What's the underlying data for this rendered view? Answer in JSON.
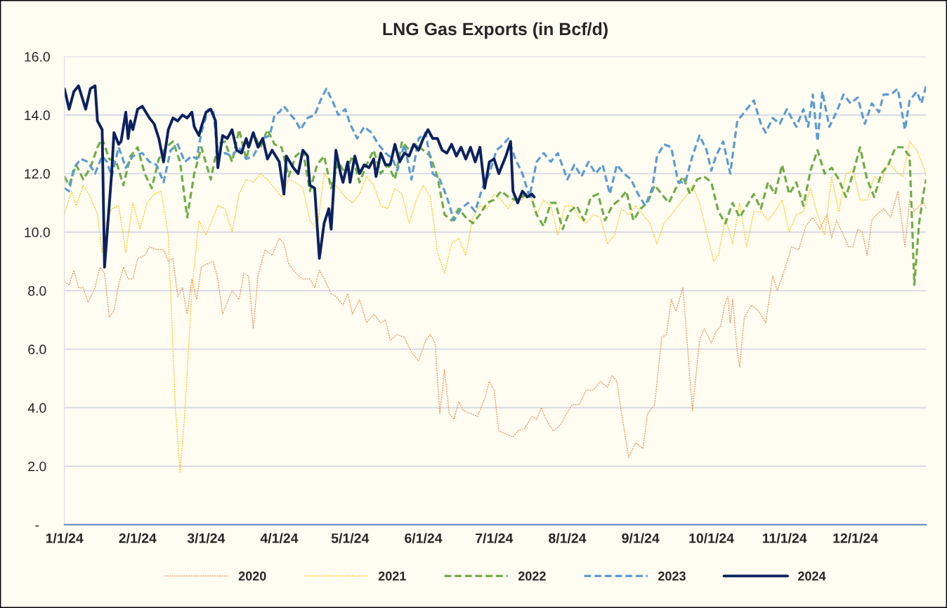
{
  "chart_data": {
    "type": "line",
    "title": "LNG Gas Exports (in Bcf/d)",
    "xlim": [
      "2024-01-01",
      "2024-12-31"
    ],
    "xticks": [
      {
        "value": "2024-01-01",
        "label": "1/1/24"
      },
      {
        "value": "2024-02-01",
        "label": "2/1/24"
      },
      {
        "value": "2024-03-01",
        "label": "3/1/24"
      },
      {
        "value": "2024-04-01",
        "label": "4/1/24"
      },
      {
        "value": "2024-05-01",
        "label": "5/1/24"
      },
      {
        "value": "2024-06-01",
        "label": "6/1/24"
      },
      {
        "value": "2024-07-01",
        "label": "7/1/24"
      },
      {
        "value": "2024-08-01",
        "label": "8/1/24"
      },
      {
        "value": "2024-09-01",
        "label": "9/1/24"
      },
      {
        "value": "2024-10-01",
        "label": "10/1/24"
      },
      {
        "value": "2024-11-01",
        "label": "11/1/24"
      },
      {
        "value": "2024-12-01",
        "label": "12/1/24"
      }
    ],
    "ylim": [
      0,
      16
    ],
    "yticks": [
      {
        "value": 0,
        "label": "-"
      },
      {
        "value": 2,
        "label": "2.0"
      },
      {
        "value": 4,
        "label": "4.0"
      },
      {
        "value": 6,
        "label": "6.0"
      },
      {
        "value": 8,
        "label": "8.0"
      },
      {
        "value": 10,
        "label": "10.0"
      },
      {
        "value": 12,
        "label": "12.0"
      },
      {
        "value": 14,
        "label": "14.0"
      },
      {
        "value": 16,
        "label": "16.0"
      }
    ],
    "grid": "y",
    "legend": "bottom",
    "marker": "none",
    "series": [
      {
        "name": "2020",
        "color": "#e8894a",
        "line_style": "dotted",
        "x": [
          "2024-01-01",
          "2024-01-03",
          "2024-01-05",
          "2024-01-07",
          "2024-01-09",
          "2024-01-11",
          "2024-01-14",
          "2024-01-16",
          "2024-01-18",
          "2024-01-20",
          "2024-01-22",
          "2024-01-24",
          "2024-01-26",
          "2024-01-28",
          "2024-01-30",
          "2024-02-01",
          "2024-02-04",
          "2024-02-06",
          "2024-02-09",
          "2024-02-12",
          "2024-02-14",
          "2024-02-16",
          "2024-02-18",
          "2024-02-20",
          "2024-02-22",
          "2024-02-24",
          "2024-02-26",
          "2024-02-28",
          "2024-03-01",
          "2024-03-04",
          "2024-03-06",
          "2024-03-08",
          "2024-03-10",
          "2024-03-12",
          "2024-03-15",
          "2024-03-17",
          "2024-03-19",
          "2024-03-21",
          "2024-03-23",
          "2024-03-26",
          "2024-03-29",
          "2024-04-01",
          "2024-04-03",
          "2024-04-05",
          "2024-04-08",
          "2024-04-11",
          "2024-04-14",
          "2024-04-16",
          "2024-04-18",
          "2024-04-20",
          "2024-04-23",
          "2024-04-25",
          "2024-04-28",
          "2024-04-30",
          "2024-05-02",
          "2024-05-05",
          "2024-05-08",
          "2024-05-11",
          "2024-05-14",
          "2024-05-16",
          "2024-05-18",
          "2024-05-21",
          "2024-05-24",
          "2024-05-27",
          "2024-05-30",
          "2024-06-02",
          "2024-06-04",
          "2024-06-06",
          "2024-06-08",
          "2024-06-10",
          "2024-06-12",
          "2024-06-14",
          "2024-06-16",
          "2024-06-18",
          "2024-06-21",
          "2024-06-24",
          "2024-06-27",
          "2024-06-29",
          "2024-07-01",
          "2024-07-03",
          "2024-07-06",
          "2024-07-09",
          "2024-07-11",
          "2024-07-14",
          "2024-07-17",
          "2024-07-19",
          "2024-07-21",
          "2024-07-23",
          "2024-07-26",
          "2024-07-29",
          "2024-07-31",
          "2024-08-03",
          "2024-08-06",
          "2024-08-09",
          "2024-08-12",
          "2024-08-15",
          "2024-08-18",
          "2024-08-20",
          "2024-08-22",
          "2024-08-24",
          "2024-08-27",
          "2024-08-30",
          "2024-09-02",
          "2024-09-04",
          "2024-09-07",
          "2024-09-10",
          "2024-09-12",
          "2024-09-14",
          "2024-09-16",
          "2024-09-19",
          "2024-09-21",
          "2024-09-23",
          "2024-09-26",
          "2024-09-28",
          "2024-10-01",
          "2024-10-03",
          "2024-10-05",
          "2024-10-07",
          "2024-10-08",
          "2024-10-09",
          "2024-10-10",
          "2024-10-12",
          "2024-10-13",
          "2024-10-15",
          "2024-10-18",
          "2024-10-21",
          "2024-10-24",
          "2024-10-27",
          "2024-10-29",
          "2024-11-01",
          "2024-11-04",
          "2024-11-07",
          "2024-11-10",
          "2024-11-13",
          "2024-11-16",
          "2024-11-19",
          "2024-11-21",
          "2024-11-23",
          "2024-11-26",
          "2024-11-28",
          "2024-11-30",
          "2024-12-02",
          "2024-12-04",
          "2024-12-06",
          "2024-12-08",
          "2024-12-10",
          "2024-12-13",
          "2024-12-16",
          "2024-12-19",
          "2024-12-22",
          "2024-12-24",
          "2024-12-26",
          "2024-12-28",
          "2024-12-30",
          "2024-12-31"
        ],
        "values": [
          8.3,
          8.2,
          8.7,
          8.1,
          8.1,
          7.6,
          8.1,
          8.8,
          8.6,
          7.1,
          7.3,
          8.2,
          8.8,
          8.4,
          8.4,
          9.1,
          9.2,
          9.5,
          9.4,
          9.4,
          9.0,
          9.1,
          7.8,
          8.1,
          7.2,
          8.4,
          7.7,
          8.8,
          8.9,
          9.0,
          8.4,
          7.2,
          7.6,
          8.0,
          7.7,
          8.6,
          8.5,
          6.7,
          8.5,
          9.4,
          9.2,
          9.8,
          9.6,
          8.9,
          8.6,
          8.4,
          8.4,
          8.1,
          8.7,
          8.4,
          7.9,
          7.8,
          7.5,
          7.9,
          7.2,
          7.7,
          6.9,
          7.2,
          6.9,
          7.0,
          6.3,
          6.5,
          6.4,
          5.9,
          5.6,
          6.3,
          6.5,
          6.2,
          3.8,
          5.3,
          3.8,
          3.6,
          4.2,
          3.9,
          3.8,
          3.7,
          4.3,
          4.9,
          4.6,
          3.2,
          3.1,
          3.0,
          3.2,
          3.3,
          3.7,
          3.6,
          4.0,
          3.6,
          3.2,
          3.4,
          3.7,
          4.1,
          4.1,
          4.6,
          4.6,
          4.9,
          4.7,
          5.1,
          4.9,
          3.8,
          2.3,
          2.8,
          2.6,
          3.8,
          4.1,
          6.4,
          6.5,
          7.7,
          7.3,
          8.1,
          6.0,
          3.9,
          6.3,
          6.7,
          6.2,
          6.6,
          6.8,
          7.6,
          7.8,
          6.9,
          7.7,
          5.9,
          5.4,
          7.1,
          7.5,
          7.3,
          6.9,
          8.5,
          8.0,
          8.7,
          9.5,
          9.4,
          10.2,
          10.5,
          10.1,
          10.6,
          9.8,
          10.4,
          9.9,
          9.5,
          9.5,
          10.1,
          10.0,
          9.2,
          10.4,
          10.6,
          10.8,
          10.5,
          11.4,
          9.5,
          11.1,
          10.7,
          10.9,
          11.0,
          10.8
        ]
      },
      {
        "name": "2021",
        "color": "#ffc000",
        "line_style": "dotted",
        "x": [
          "2024-01-01",
          "2024-01-04",
          "2024-01-06",
          "2024-01-09",
          "2024-01-12",
          "2024-01-15",
          "2024-01-17",
          "2024-01-19",
          "2024-01-21",
          "2024-01-24",
          "2024-01-27",
          "2024-01-30",
          "2024-02-02",
          "2024-02-05",
          "2024-02-08",
          "2024-02-11",
          "2024-02-14",
          "2024-02-17",
          "2024-02-19",
          "2024-02-21",
          "2024-02-24",
          "2024-02-27",
          "2024-03-01",
          "2024-03-03",
          "2024-03-06",
          "2024-03-09",
          "2024-03-12",
          "2024-03-15",
          "2024-03-18",
          "2024-03-21",
          "2024-03-24",
          "2024-03-27",
          "2024-03-30",
          "2024-04-02",
          "2024-04-05",
          "2024-04-08",
          "2024-04-11",
          "2024-04-14",
          "2024-04-17",
          "2024-04-20",
          "2024-04-23",
          "2024-04-26",
          "2024-04-29",
          "2024-05-02",
          "2024-05-05",
          "2024-05-08",
          "2024-05-11",
          "2024-05-14",
          "2024-05-17",
          "2024-05-20",
          "2024-05-23",
          "2024-05-26",
          "2024-05-29",
          "2024-06-01",
          "2024-06-04",
          "2024-06-07",
          "2024-06-10",
          "2024-06-13",
          "2024-06-16",
          "2024-06-19",
          "2024-06-22",
          "2024-06-25",
          "2024-06-28",
          "2024-07-01",
          "2024-07-04",
          "2024-07-07",
          "2024-07-10",
          "2024-07-13",
          "2024-07-16",
          "2024-07-19",
          "2024-07-22",
          "2024-07-25",
          "2024-07-28",
          "2024-07-31",
          "2024-08-03",
          "2024-08-06",
          "2024-08-09",
          "2024-08-12",
          "2024-08-15",
          "2024-08-18",
          "2024-08-21",
          "2024-08-24",
          "2024-08-27",
          "2024-08-30",
          "2024-09-02",
          "2024-09-05",
          "2024-09-08",
          "2024-09-11",
          "2024-09-14",
          "2024-09-17",
          "2024-09-20",
          "2024-09-23",
          "2024-09-26",
          "2024-09-29",
          "2024-10-02",
          "2024-10-04",
          "2024-10-07",
          "2024-10-10",
          "2024-10-13",
          "2024-10-16",
          "2024-10-19",
          "2024-10-22",
          "2024-10-25",
          "2024-10-28",
          "2024-10-31",
          "2024-11-03",
          "2024-11-06",
          "2024-11-09",
          "2024-11-12",
          "2024-11-15",
          "2024-11-18",
          "2024-11-21",
          "2024-11-24",
          "2024-11-27",
          "2024-11-30",
          "2024-12-03",
          "2024-12-06",
          "2024-12-09",
          "2024-12-12",
          "2024-12-15",
          "2024-12-18",
          "2024-12-21",
          "2024-12-24",
          "2024-12-27",
          "2024-12-30",
          "2024-12-31"
        ],
        "values": [
          10.6,
          11.4,
          10.9,
          11.6,
          11.2,
          10.6,
          9.3,
          10.4,
          10.8,
          10.9,
          9.3,
          11.0,
          10.1,
          11.0,
          11.3,
          11.4,
          9.9,
          4.0,
          1.8,
          3.8,
          8.0,
          10.4,
          9.9,
          10.3,
          10.9,
          10.8,
          10.0,
          11.3,
          11.8,
          11.7,
          12.0,
          11.8,
          11.5,
          11.2,
          11.8,
          11.7,
          11.5,
          10.4,
          10.1,
          12.0,
          11.7,
          11.5,
          11.2,
          11.0,
          11.3,
          11.9,
          11.6,
          10.9,
          10.8,
          11.5,
          11.3,
          10.3,
          11.1,
          11.6,
          11.2,
          9.3,
          8.6,
          9.6,
          9.8,
          9.2,
          10.5,
          10.9,
          10.8,
          11.3,
          11.1,
          10.8,
          11.2,
          11.1,
          11.4,
          10.6,
          11.1,
          10.9,
          9.9,
          10.9,
          10.9,
          10.5,
          10.3,
          10.6,
          10.5,
          9.6,
          9.9,
          10.8,
          10.6,
          10.9,
          10.6,
          10.3,
          9.6,
          10.3,
          10.6,
          10.9,
          11.2,
          11.6,
          11.0,
          10.0,
          9.0,
          9.2,
          10.5,
          9.6,
          11.0,
          9.5,
          10.7,
          10.7,
          10.4,
          10.7,
          11.1,
          10.0,
          10.6,
          10.7,
          11.5,
          10.6,
          9.9,
          11.9,
          10.7,
          12.0,
          12.1,
          11.1,
          11.1,
          11.9,
          11.7,
          12.4,
          12.1,
          11.9,
          13.1,
          12.8,
          12.2,
          11.9
        ]
      },
      {
        "name": "2022",
        "color": "#70ad47",
        "line_style": "dashed",
        "x": [
          "2024-01-01",
          "2024-01-03",
          "2024-01-06",
          "2024-01-09",
          "2024-01-12",
          "2024-01-15",
          "2024-01-17",
          "2024-01-20",
          "2024-01-23",
          "2024-01-26",
          "2024-01-29",
          "2024-02-01",
          "2024-02-04",
          "2024-02-07",
          "2024-02-10",
          "2024-02-13",
          "2024-02-16",
          "2024-02-19",
          "2024-02-22",
          "2024-02-25",
          "2024-02-28",
          "2024-03-03",
          "2024-03-06",
          "2024-03-09",
          "2024-03-12",
          "2024-03-15",
          "2024-03-18",
          "2024-03-21",
          "2024-03-24",
          "2024-03-27",
          "2024-03-30",
          "2024-04-02",
          "2024-04-05",
          "2024-04-08",
          "2024-04-11",
          "2024-04-14",
          "2024-04-17",
          "2024-04-20",
          "2024-04-23",
          "2024-04-26",
          "2024-04-29",
          "2024-05-02",
          "2024-05-05",
          "2024-05-08",
          "2024-05-11",
          "2024-05-14",
          "2024-05-17",
          "2024-05-20",
          "2024-05-23",
          "2024-05-26",
          "2024-05-29",
          "2024-06-01",
          "2024-06-04",
          "2024-06-07",
          "2024-06-10",
          "2024-06-13",
          "2024-06-16",
          "2024-06-19",
          "2024-06-22",
          "2024-06-25",
          "2024-06-28",
          "2024-07-01",
          "2024-07-04",
          "2024-07-07",
          "2024-07-10",
          "2024-07-13",
          "2024-07-16",
          "2024-07-19",
          "2024-07-22",
          "2024-07-25",
          "2024-07-27",
          "2024-07-30",
          "2024-08-02",
          "2024-08-05",
          "2024-08-08",
          "2024-08-11",
          "2024-08-14",
          "2024-08-17",
          "2024-08-20",
          "2024-08-23",
          "2024-08-26",
          "2024-08-29",
          "2024-09-01",
          "2024-09-04",
          "2024-09-07",
          "2024-09-10",
          "2024-09-13",
          "2024-09-16",
          "2024-09-19",
          "2024-09-22",
          "2024-09-25",
          "2024-09-28",
          "2024-10-01",
          "2024-10-04",
          "2024-10-07",
          "2024-10-10",
          "2024-10-13",
          "2024-10-16",
          "2024-10-19",
          "2024-10-22",
          "2024-10-25",
          "2024-10-28",
          "2024-10-31",
          "2024-11-03",
          "2024-11-06",
          "2024-11-09",
          "2024-11-12",
          "2024-11-15",
          "2024-11-18",
          "2024-11-21",
          "2024-11-24",
          "2024-11-27",
          "2024-11-30",
          "2024-12-03",
          "2024-12-06",
          "2024-12-09",
          "2024-12-12",
          "2024-12-15",
          "2024-12-18",
          "2024-12-21",
          "2024-12-24",
          "2024-12-26",
          "2024-12-28",
          "2024-12-30",
          "2024-12-31"
        ],
        "values": [
          11.9,
          11.6,
          12.3,
          11.8,
          12.2,
          12.9,
          13.2,
          12.5,
          12.4,
          11.6,
          12.6,
          12.9,
          12.0,
          11.5,
          12.5,
          12.9,
          13.1,
          12.4,
          10.5,
          12.0,
          12.9,
          11.8,
          13.0,
          13.1,
          12.4,
          13.5,
          12.5,
          13.4,
          12.9,
          13.5,
          13.0,
          12.9,
          11.9,
          12.6,
          12.8,
          11.4,
          12.3,
          12.6,
          11.5,
          12.4,
          12.0,
          12.6,
          11.7,
          12.3,
          12.8,
          12.0,
          12.3,
          11.8,
          13.1,
          12.8,
          13.0,
          12.8,
          12.6,
          11.9,
          10.6,
          10.4,
          10.8,
          10.5,
          10.3,
          10.6,
          11.0,
          11.1,
          11.4,
          11.2,
          11.1,
          11.2,
          11.4,
          10.6,
          10.2,
          11.0,
          11.0,
          10.1,
          10.7,
          10.9,
          10.4,
          11.2,
          11.3,
          10.4,
          10.9,
          11.1,
          11.4,
          10.4,
          10.8,
          11.0,
          11.6,
          11.3,
          11.0,
          11.5,
          11.9,
          11.3,
          11.8,
          11.9,
          11.7,
          10.7,
          10.3,
          11.0,
          10.5,
          10.9,
          11.3,
          10.8,
          11.7,
          11.3,
          12.3,
          11.3,
          11.7,
          10.9,
          12.1,
          12.8,
          12.0,
          12.2,
          11.8,
          11.2,
          12.0,
          12.9,
          11.8,
          11.2,
          12.0,
          12.3,
          12.9,
          12.9,
          12.6,
          8.2,
          10.3,
          11.4,
          11.8
        ]
      },
      {
        "name": "2023",
        "color": "#5b9bd5",
        "line_style": "dashed",
        "x": [
          "2024-01-01",
          "2024-01-03",
          "2024-01-05",
          "2024-01-08",
          "2024-01-11",
          "2024-01-14",
          "2024-01-17",
          "2024-01-19",
          "2024-01-21",
          "2024-01-24",
          "2024-01-27",
          "2024-01-30",
          "2024-02-03",
          "2024-02-06",
          "2024-02-09",
          "2024-02-12",
          "2024-02-15",
          "2024-02-18",
          "2024-02-21",
          "2024-02-24",
          "2024-02-26",
          "2024-02-28",
          "2024-03-02",
          "2024-03-04",
          "2024-03-06",
          "2024-03-09",
          "2024-03-12",
          "2024-03-15",
          "2024-03-18",
          "2024-03-21",
          "2024-03-25",
          "2024-03-28",
          "2024-03-30",
          "2024-04-01",
          "2024-04-03",
          "2024-04-06",
          "2024-04-08",
          "2024-04-10",
          "2024-04-13",
          "2024-04-16",
          "2024-04-19",
          "2024-04-21",
          "2024-04-24",
          "2024-04-26",
          "2024-04-29",
          "2024-05-01",
          "2024-05-04",
          "2024-05-07",
          "2024-05-10",
          "2024-05-13",
          "2024-05-16",
          "2024-05-19",
          "2024-05-21",
          "2024-05-24",
          "2024-05-27",
          "2024-05-30",
          "2024-06-02",
          "2024-06-05",
          "2024-06-08",
          "2024-06-11",
          "2024-06-14",
          "2024-06-17",
          "2024-06-20",
          "2024-06-23",
          "2024-06-26",
          "2024-06-29",
          "2024-07-02",
          "2024-07-05",
          "2024-07-07",
          "2024-07-10",
          "2024-07-13",
          "2024-07-16",
          "2024-07-19",
          "2024-07-22",
          "2024-07-25",
          "2024-07-28",
          "2024-08-01",
          "2024-08-04",
          "2024-08-07",
          "2024-08-10",
          "2024-08-13",
          "2024-08-16",
          "2024-08-19",
          "2024-08-22",
          "2024-08-25",
          "2024-08-28",
          "2024-08-31",
          "2024-09-03",
          "2024-09-06",
          "2024-09-08",
          "2024-09-11",
          "2024-09-14",
          "2024-09-17",
          "2024-09-20",
          "2024-09-23",
          "2024-09-26",
          "2024-09-29",
          "2024-10-01",
          "2024-10-03",
          "2024-10-06",
          "2024-10-09",
          "2024-10-12",
          "2024-10-16",
          "2024-10-19",
          "2024-10-22",
          "2024-10-24",
          "2024-10-27",
          "2024-10-30",
          "2024-11-02",
          "2024-11-04",
          "2024-11-06",
          "2024-11-09",
          "2024-11-11",
          "2024-11-13",
          "2024-11-15",
          "2024-11-17",
          "2024-11-20",
          "2024-11-23",
          "2024-11-26",
          "2024-11-29",
          "2024-12-02",
          "2024-12-05",
          "2024-12-08",
          "2024-12-11",
          "2024-12-13",
          "2024-12-16",
          "2024-12-19",
          "2024-12-22",
          "2024-12-24",
          "2024-12-27",
          "2024-12-29",
          "2024-12-31"
        ],
        "values": [
          11.5,
          11.4,
          12.2,
          12.5,
          12.4,
          12.0,
          12.6,
          12.4,
          11.9,
          12.9,
          12.2,
          12.6,
          12.7,
          12.4,
          12.3,
          11.7,
          12.8,
          13.0,
          12.4,
          12.6,
          12.5,
          13.4,
          14.2,
          14.2,
          12.6,
          12.7,
          12.6,
          12.9,
          12.5,
          12.6,
          13.2,
          13.3,
          14.0,
          14.1,
          14.3,
          14.0,
          13.8,
          13.5,
          13.9,
          14.0,
          14.6,
          14.9,
          14.4,
          14.0,
          14.2,
          13.7,
          13.2,
          13.6,
          13.4,
          13.0,
          12.7,
          12.5,
          12.1,
          13.0,
          11.8,
          13.2,
          13.4,
          12.0,
          11.8,
          11.2,
          10.4,
          10.8,
          11.0,
          10.7,
          11.5,
          12.0,
          12.8,
          13.0,
          13.2,
          12.5,
          12.0,
          11.2,
          12.4,
          12.7,
          12.4,
          12.7,
          11.8,
          12.3,
          11.9,
          12.4,
          12.0,
          12.3,
          11.3,
          12.3,
          12.0,
          11.8,
          11.3,
          10.9,
          11.5,
          12.6,
          13.0,
          12.9,
          11.7,
          11.7,
          12.6,
          13.3,
          12.8,
          12.1,
          12.6,
          13.1,
          12.0,
          13.8,
          14.2,
          14.5,
          13.7,
          13.4,
          13.9,
          13.7,
          14.2,
          13.9,
          13.6,
          14.2,
          13.6,
          14.7,
          13.1,
          14.8,
          13.6,
          14.1,
          14.7,
          14.4,
          14.6,
          13.7,
          14.4,
          14.1,
          14.7,
          14.7,
          14.9,
          13.5,
          14.5,
          14.8,
          14.4,
          15.0
        ]
      },
      {
        "name": "2024",
        "color": "#0b2160",
        "line_style": "solid",
        "x": [
          "2024-01-01",
          "2024-01-03",
          "2024-01-05",
          "2024-01-07",
          "2024-01-10",
          "2024-01-12",
          "2024-01-14",
          "2024-01-15",
          "2024-01-17",
          "2024-01-18",
          "2024-01-21",
          "2024-01-22",
          "2024-01-24",
          "2024-01-25",
          "2024-01-27",
          "2024-01-28",
          "2024-01-29",
          "2024-01-30",
          "2024-02-01",
          "2024-02-03",
          "2024-02-06",
          "2024-02-08",
          "2024-02-10",
          "2024-02-12",
          "2024-02-14",
          "2024-02-16",
          "2024-02-18",
          "2024-02-20",
          "2024-02-22",
          "2024-02-24",
          "2024-02-25",
          "2024-02-27",
          "2024-02-28",
          "2024-03-01",
          "2024-03-03",
          "2024-03-05",
          "2024-03-06",
          "2024-03-08",
          "2024-03-10",
          "2024-03-12",
          "2024-03-14",
          "2024-03-16",
          "2024-03-18",
          "2024-03-19",
          "2024-03-21",
          "2024-03-23",
          "2024-03-25",
          "2024-03-27",
          "2024-03-29",
          "2024-04-01",
          "2024-04-03",
          "2024-04-04",
          "2024-04-07",
          "2024-04-09",
          "2024-04-11",
          "2024-04-13",
          "2024-04-14",
          "2024-04-16",
          "2024-04-18",
          "2024-04-20",
          "2024-04-22",
          "2024-04-23",
          "2024-04-25",
          "2024-04-27",
          "2024-04-28",
          "2024-04-30",
          "2024-05-01",
          "2024-05-03",
          "2024-05-05",
          "2024-05-07",
          "2024-05-09",
          "2024-05-11",
          "2024-05-12",
          "2024-05-14",
          "2024-05-16",
          "2024-05-18",
          "2024-05-20",
          "2024-05-22",
          "2024-05-24",
          "2024-05-26",
          "2024-05-28",
          "2024-05-30",
          "2024-06-01",
          "2024-06-03",
          "2024-06-05",
          "2024-06-07",
          "2024-06-09",
          "2024-06-11",
          "2024-06-13",
          "2024-06-15",
          "2024-06-17",
          "2024-06-19",
          "2024-06-21",
          "2024-06-23",
          "2024-06-25",
          "2024-06-27",
          "2024-06-29",
          "2024-07-01",
          "2024-07-03",
          "2024-07-06",
          "2024-07-08",
          "2024-07-09",
          "2024-07-11",
          "2024-07-13",
          "2024-07-15",
          "2024-07-17",
          "2024-07-18"
        ],
        "values": [
          14.9,
          14.2,
          14.8,
          15.0,
          14.2,
          14.9,
          15.0,
          13.8,
          13.5,
          8.8,
          12.0,
          13.4,
          13.0,
          13.1,
          14.1,
          13.2,
          13.8,
          13.5,
          14.2,
          14.3,
          13.9,
          13.7,
          13.2,
          12.4,
          13.5,
          13.9,
          13.8,
          14.0,
          13.9,
          14.1,
          13.6,
          13.3,
          13.6,
          14.1,
          14.2,
          13.8,
          12.2,
          13.3,
          13.2,
          13.5,
          12.8,
          12.7,
          13.2,
          12.9,
          13.4,
          12.9,
          13.2,
          12.5,
          12.8,
          12.4,
          11.3,
          12.6,
          12.2,
          12.0,
          12.8,
          12.6,
          11.6,
          11.5,
          9.1,
          10.3,
          10.8,
          10.1,
          12.8,
          12.0,
          11.7,
          12.4,
          11.7,
          12.6,
          12.0,
          12.3,
          12.2,
          12.5,
          11.9,
          12.7,
          12.3,
          12.3,
          13.0,
          12.4,
          12.7,
          12.6,
          13.0,
          12.8,
          13.2,
          13.5,
          13.2,
          13.2,
          12.8,
          12.7,
          13.0,
          12.6,
          12.9,
          12.5,
          12.9,
          12.4,
          12.9,
          11.5,
          12.4,
          12.5,
          12.0,
          12.6,
          13.1,
          11.4,
          11.0,
          11.4,
          11.2,
          11.3,
          11.2
        ]
      }
    ]
  }
}
